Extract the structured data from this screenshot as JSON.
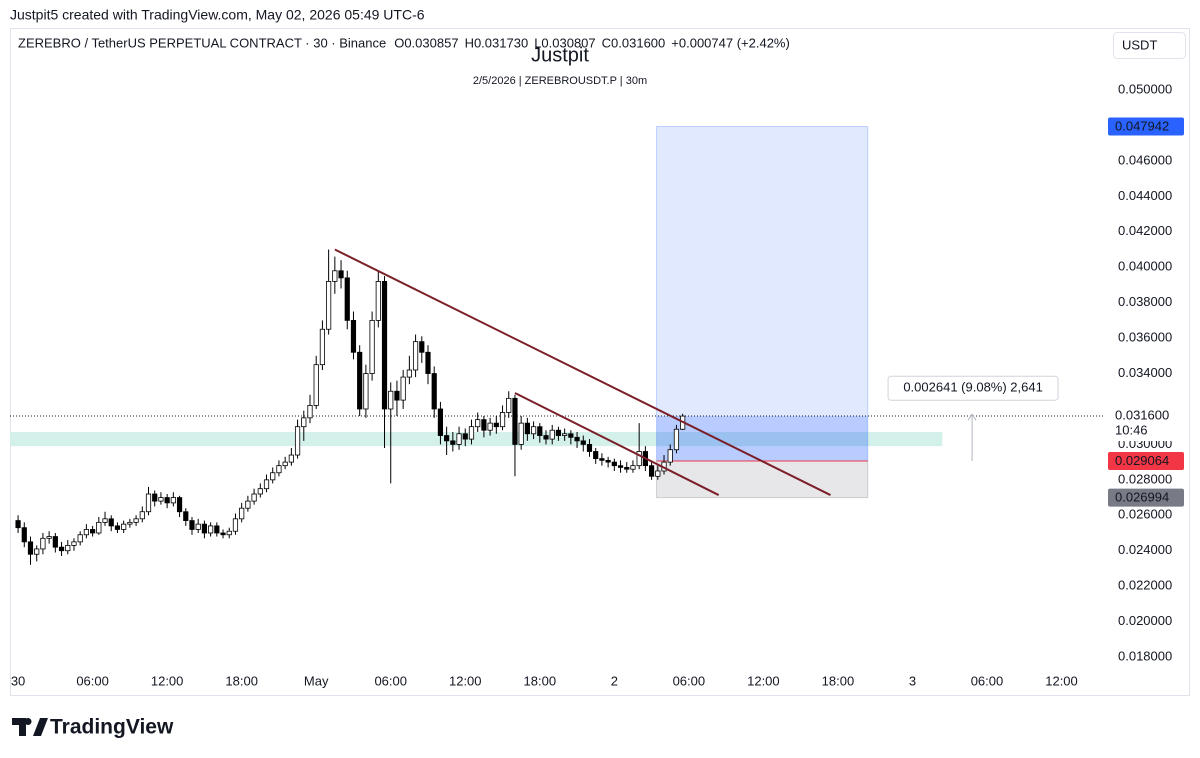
{
  "header": {
    "credit": "Justpit5 created with TradingView.com, May 02, 2026 05:49 UTC-6",
    "symbol": "ZEREBRO / TetherUS PERPETUAL CONTRACT · 30 · Binance",
    "ohlc": [
      {
        "key": "O",
        "value": "0.030857"
      },
      {
        "key": "H",
        "value": "0.031730"
      },
      {
        "key": "L",
        "value": "0.030807"
      },
      {
        "key": "C",
        "value": "0.031600"
      }
    ],
    "change": "+0.000747 (+2.42%)",
    "currency": "USDT"
  },
  "chart_data": {
    "type": "candlestick",
    "title": "Justpit",
    "subtitle": "2/5/2026 | ZEREBROUSDT.P | 30m",
    "up_color": "#ffffff",
    "down_color": "#000000",
    "outline_color": "#000000",
    "x": [
      0,
      0.5,
      1,
      1.5,
      2,
      2.5,
      3,
      3.5,
      4,
      4.5,
      5,
      5.5,
      6,
      6.5,
      7,
      7.5,
      8,
      8.5,
      9,
      9.5,
      10,
      10.5,
      11,
      11.5,
      12,
      12.5,
      13,
      13.5,
      14,
      14.5,
      15,
      15.5,
      16,
      16.5,
      17,
      17.5,
      18,
      18.5,
      19,
      19.5,
      20,
      20.5,
      21,
      21.5,
      22,
      22.5,
      23,
      23.5,
      24,
      24.5,
      25,
      25.5,
      26,
      26.5,
      27,
      27.5,
      28,
      28.5,
      29,
      29.5,
      30,
      30.5,
      31,
      31.5,
      32,
      32.5,
      33,
      33.5,
      34,
      34.5,
      35,
      35.5,
      36,
      36.5,
      37,
      37.5,
      38,
      38.5,
      39,
      39.5,
      40,
      40.5,
      41,
      41.5,
      42,
      42.5,
      43,
      43.5,
      44,
      44.5,
      45,
      45.5,
      46,
      46.5,
      47,
      47.5,
      48,
      48.5,
      49,
      49.5,
      50,
      50.5,
      51,
      51.5,
      52,
      52.5,
      53,
      53.5
    ],
    "open": [
      0.0257,
      0.0253,
      0.0245,
      0.0238,
      0.0241,
      0.0247,
      0.0248,
      0.0242,
      0.024,
      0.0243,
      0.0245,
      0.0249,
      0.0252,
      0.025,
      0.0256,
      0.0258,
      0.0254,
      0.0252,
      0.0255,
      0.0256,
      0.0258,
      0.0262,
      0.0272,
      0.0268,
      0.027,
      0.0267,
      0.027,
      0.0262,
      0.0257,
      0.0252,
      0.0255,
      0.025,
      0.0254,
      0.025,
      0.0249,
      0.0251,
      0.0258,
      0.0264,
      0.0268,
      0.0272,
      0.0275,
      0.028,
      0.0284,
      0.0288,
      0.029,
      0.0294,
      0.031,
      0.0315,
      0.0322,
      0.0345,
      0.0365,
      0.0392,
      0.0398,
      0.0394,
      0.037,
      0.0352,
      0.032,
      0.034,
      0.037,
      0.0392,
      0.032,
      0.033,
      0.0325,
      0.0338,
      0.0342,
      0.0358,
      0.0352,
      0.034,
      0.032,
      0.0305,
      0.0302,
      0.03,
      0.0306,
      0.0303,
      0.031,
      0.0314,
      0.0308,
      0.0312,
      0.031,
      0.0318,
      0.0326,
      0.03,
      0.0312,
      0.0306,
      0.031,
      0.0305,
      0.0303,
      0.0308,
      0.0305,
      0.0306,
      0.0304,
      0.0302,
      0.03,
      0.0296,
      0.0292,
      0.0291,
      0.029,
      0.0288,
      0.0287,
      0.0286,
      0.0288,
      0.0296,
      0.0288,
      0.0282,
      0.0285,
      0.029,
      0.0297,
      0.030857
    ],
    "high": [
      0.026,
      0.0256,
      0.0248,
      0.0243,
      0.025,
      0.0251,
      0.025,
      0.0245,
      0.0246,
      0.0247,
      0.0251,
      0.0255,
      0.0254,
      0.0259,
      0.0262,
      0.026,
      0.0256,
      0.0257,
      0.0258,
      0.026,
      0.0265,
      0.0276,
      0.0274,
      0.0273,
      0.0272,
      0.0273,
      0.0271,
      0.0264,
      0.0259,
      0.0258,
      0.0257,
      0.0256,
      0.0256,
      0.0252,
      0.0253,
      0.0261,
      0.0267,
      0.0271,
      0.0275,
      0.0278,
      0.0283,
      0.0287,
      0.0291,
      0.0293,
      0.0298,
      0.0314,
      0.0319,
      0.0328,
      0.035,
      0.037,
      0.041,
      0.0406,
      0.0404,
      0.0398,
      0.0375,
      0.0356,
      0.0345,
      0.0375,
      0.0398,
      0.0395,
      0.0335,
      0.0336,
      0.0342,
      0.035,
      0.0362,
      0.0361,
      0.0356,
      0.0344,
      0.0324,
      0.031,
      0.0307,
      0.031,
      0.0309,
      0.0314,
      0.0318,
      0.0316,
      0.0315,
      0.0316,
      0.0322,
      0.033,
      0.0328,
      0.0316,
      0.0315,
      0.0313,
      0.0312,
      0.0308,
      0.0311,
      0.031,
      0.0309,
      0.0308,
      0.0307,
      0.0305,
      0.0303,
      0.0298,
      0.0295,
      0.0293,
      0.0292,
      0.0291,
      0.029,
      0.0291,
      0.0312,
      0.0299,
      0.0291,
      0.0288,
      0.0294,
      0.03,
      0.0311,
      0.03173
    ],
    "low": [
      0.025,
      0.0242,
      0.0232,
      0.0234,
      0.0238,
      0.0244,
      0.0239,
      0.0237,
      0.0238,
      0.024,
      0.0243,
      0.0247,
      0.0248,
      0.0249,
      0.0254,
      0.0251,
      0.025,
      0.025,
      0.0253,
      0.0254,
      0.0256,
      0.026,
      0.0265,
      0.0266,
      0.0264,
      0.0265,
      0.0259,
      0.0254,
      0.0249,
      0.025,
      0.0247,
      0.0248,
      0.0248,
      0.0247,
      0.0247,
      0.0249,
      0.0256,
      0.0262,
      0.0266,
      0.027,
      0.0273,
      0.0278,
      0.0282,
      0.0286,
      0.0288,
      0.0292,
      0.0302,
      0.0312,
      0.032,
      0.0342,
      0.0362,
      0.0385,
      0.0388,
      0.0365,
      0.0348,
      0.0316,
      0.0315,
      0.0336,
      0.0366,
      0.0298,
      0.0278,
      0.0316,
      0.032,
      0.0334,
      0.0338,
      0.0346,
      0.0334,
      0.0315,
      0.03,
      0.0294,
      0.0296,
      0.0297,
      0.0299,
      0.03,
      0.0307,
      0.0304,
      0.0305,
      0.0306,
      0.0308,
      0.0315,
      0.0282,
      0.0297,
      0.0302,
      0.0303,
      0.0301,
      0.03,
      0.03,
      0.0302,
      0.0302,
      0.03,
      0.0298,
      0.0296,
      0.0293,
      0.0289,
      0.0288,
      0.0287,
      0.0285,
      0.0284,
      0.0284,
      0.0284,
      0.0286,
      0.0285,
      0.028,
      0.028,
      0.0283,
      0.0288,
      0.0295,
      0.030807
    ],
    "close": [
      0.0253,
      0.0245,
      0.0238,
      0.0241,
      0.0247,
      0.0248,
      0.0242,
      0.024,
      0.0243,
      0.0245,
      0.0249,
      0.0252,
      0.025,
      0.0256,
      0.0258,
      0.0254,
      0.0252,
      0.0255,
      0.0256,
      0.0258,
      0.0262,
      0.0272,
      0.0268,
      0.027,
      0.0267,
      0.027,
      0.0262,
      0.0257,
      0.0252,
      0.0255,
      0.025,
      0.0254,
      0.025,
      0.0249,
      0.0251,
      0.0258,
      0.0264,
      0.0268,
      0.0272,
      0.0275,
      0.028,
      0.0284,
      0.0288,
      0.029,
      0.0294,
      0.031,
      0.0315,
      0.0322,
      0.0345,
      0.0365,
      0.0392,
      0.0398,
      0.0394,
      0.037,
      0.0352,
      0.032,
      0.034,
      0.037,
      0.0392,
      0.032,
      0.033,
      0.0325,
      0.0338,
      0.0342,
      0.0358,
      0.0352,
      0.034,
      0.032,
      0.0305,
      0.0302,
      0.03,
      0.0306,
      0.0303,
      0.031,
      0.0314,
      0.0308,
      0.0312,
      0.031,
      0.0318,
      0.0326,
      0.03,
      0.0312,
      0.0306,
      0.031,
      0.0305,
      0.0303,
      0.0308,
      0.0305,
      0.0306,
      0.0304,
      0.0302,
      0.03,
      0.0296,
      0.0292,
      0.0291,
      0.029,
      0.0288,
      0.0287,
      0.0286,
      0.0288,
      0.0296,
      0.0288,
      0.0282,
      0.0285,
      0.029,
      0.0297,
      0.030857,
      0.0316
    ],
    "xlim": [
      -0.65,
      87.5
    ],
    "xticks": [
      {
        "value": 0,
        "label": "30"
      },
      {
        "value": 6,
        "label": "06:00"
      },
      {
        "value": 12,
        "label": "12:00"
      },
      {
        "value": 18,
        "label": "18:00"
      },
      {
        "value": 24,
        "label": "May"
      },
      {
        "value": 30,
        "label": "06:00"
      },
      {
        "value": 36,
        "label": "12:00"
      },
      {
        "value": 42,
        "label": "18:00"
      },
      {
        "value": 48,
        "label": "2"
      },
      {
        "value": 54,
        "label": "06:00"
      },
      {
        "value": 60,
        "label": "12:00"
      },
      {
        "value": 66,
        "label": "18:00"
      },
      {
        "value": 72,
        "label": "3"
      },
      {
        "value": 78,
        "label": "06:00"
      },
      {
        "value": 84,
        "label": "12:00"
      }
    ],
    "ylim": [
      0.01738,
      0.05339
    ],
    "yticks": [
      {
        "value": 0.018,
        "label": "0.018000"
      },
      {
        "value": 0.02,
        "label": "0.020000"
      },
      {
        "value": 0.022,
        "label": "0.022000"
      },
      {
        "value": 0.024,
        "label": "0.024000"
      },
      {
        "value": 0.026,
        "label": "0.026000"
      },
      {
        "value": 0.028,
        "label": "0.028000"
      },
      {
        "value": 0.03,
        "label": "0.030000"
      },
      {
        "value": 0.034,
        "label": "0.034000"
      },
      {
        "value": 0.036,
        "label": "0.036000"
      },
      {
        "value": 0.038,
        "label": "0.038000"
      },
      {
        "value": 0.04,
        "label": "0.040000"
      },
      {
        "value": 0.042,
        "label": "0.042000"
      },
      {
        "value": 0.044,
        "label": "0.044000"
      },
      {
        "value": 0.046,
        "label": "0.046000"
      },
      {
        "value": 0.05,
        "label": "0.050000"
      }
    ],
    "grid": false,
    "last_price": {
      "value": 0.0316,
      "label": "0.031600",
      "countdown": "10:46"
    },
    "zone": {
      "x": [
        -0.65,
        74.4
      ],
      "y": [
        0.0299,
        0.0307
      ],
      "color": "#d4f0ea"
    },
    "trendlines": [
      {
        "x": [
          25.5,
          65.4
        ],
        "y": [
          0.041,
          0.02714
        ],
        "color": "#7b1f28"
      },
      {
        "x": [
          40,
          56.4
        ],
        "y": [
          0.0329,
          0.02714
        ],
        "color": "#7b1f28"
      }
    ],
    "position": {
      "x": [
        51.4,
        68.4
      ],
      "target": {
        "value": 0.047942,
        "label": "0.047942",
        "color": "#2962ff"
      },
      "entry": {
        "value": 0.029064,
        "label": "0.029064",
        "color": "#f23645"
      },
      "stop": {
        "value": 0.026994,
        "label": "0.026994",
        "color": "#787b86"
      }
    },
    "measure": {
      "x": 76.8,
      "y": [
        0.029064,
        0.031705
      ],
      "label": "0.002641 (9.08%) 2,641"
    }
  },
  "footer": {
    "logo": "TradingView"
  }
}
